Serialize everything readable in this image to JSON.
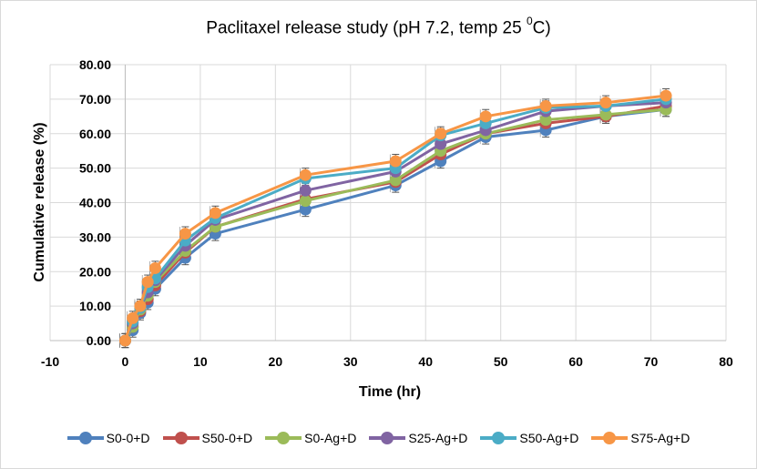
{
  "chart_data": {
    "type": "line",
    "title": "Paclitaxel release study (pH 7.2, temp 25 ",
    "title_superscript": "0",
    "title_suffix": "C)",
    "xlabel": "Time (hr)",
    "ylabel": "Cumulative release (%)",
    "xlim": [
      -10,
      80
    ],
    "ylim": [
      0,
      80
    ],
    "x_ticks": [
      "-10",
      "0",
      "10",
      "20",
      "30",
      "40",
      "50",
      "60",
      "70",
      "80"
    ],
    "x_tick_values": [
      -10,
      0,
      10,
      20,
      30,
      40,
      50,
      60,
      70,
      80
    ],
    "y_ticks": [
      "0.00",
      "10.00",
      "20.00",
      "30.00",
      "40.00",
      "50.00",
      "60.00",
      "70.00",
      "80.00"
    ],
    "y_tick_values": [
      0,
      10,
      20,
      30,
      40,
      50,
      60,
      70,
      80
    ],
    "grid": true,
    "error_bars": true,
    "error_bar_size": 2,
    "legend_position": "bottom",
    "x": [
      0,
      1,
      2,
      3,
      4,
      8,
      12,
      24,
      36,
      42,
      48,
      56,
      64,
      72
    ],
    "series": [
      {
        "name": "S0-0+D",
        "color": "#4f81bd",
        "values": [
          0,
          3,
          8,
          11,
          15,
          24,
          31,
          38,
          45,
          52,
          59,
          61,
          65,
          67
        ]
      },
      {
        "name": "S50-0+D",
        "color": "#c0504d",
        "values": [
          0,
          4,
          8.5,
          12,
          16,
          25.5,
          33,
          41,
          46,
          54,
          60,
          63,
          65,
          68
        ]
      },
      {
        "name": "S0-Ag+D",
        "color": "#9bbb59",
        "values": [
          0,
          4,
          9,
          13,
          17,
          26,
          33,
          40.5,
          46.5,
          55,
          60,
          64,
          65.5,
          67
        ]
      },
      {
        "name": "S25-Ag+D",
        "color": "#8064a2",
        "values": [
          0,
          5,
          9.5,
          14,
          17.5,
          27.5,
          35,
          43.5,
          49,
          57,
          61,
          66.5,
          68,
          69
        ]
      },
      {
        "name": "S50-Ag+D",
        "color": "#4bacc6",
        "values": [
          0,
          5.5,
          9.5,
          15.5,
          18,
          29,
          35.5,
          47,
          50,
          59.5,
          63,
          67.5,
          68,
          70
        ]
      },
      {
        "name": "S75-Ag+D",
        "color": "#f79646",
        "values": [
          0,
          6.5,
          10,
          17,
          21,
          31,
          37,
          48,
          52,
          60,
          65,
          68,
          69,
          71
        ]
      }
    ]
  }
}
